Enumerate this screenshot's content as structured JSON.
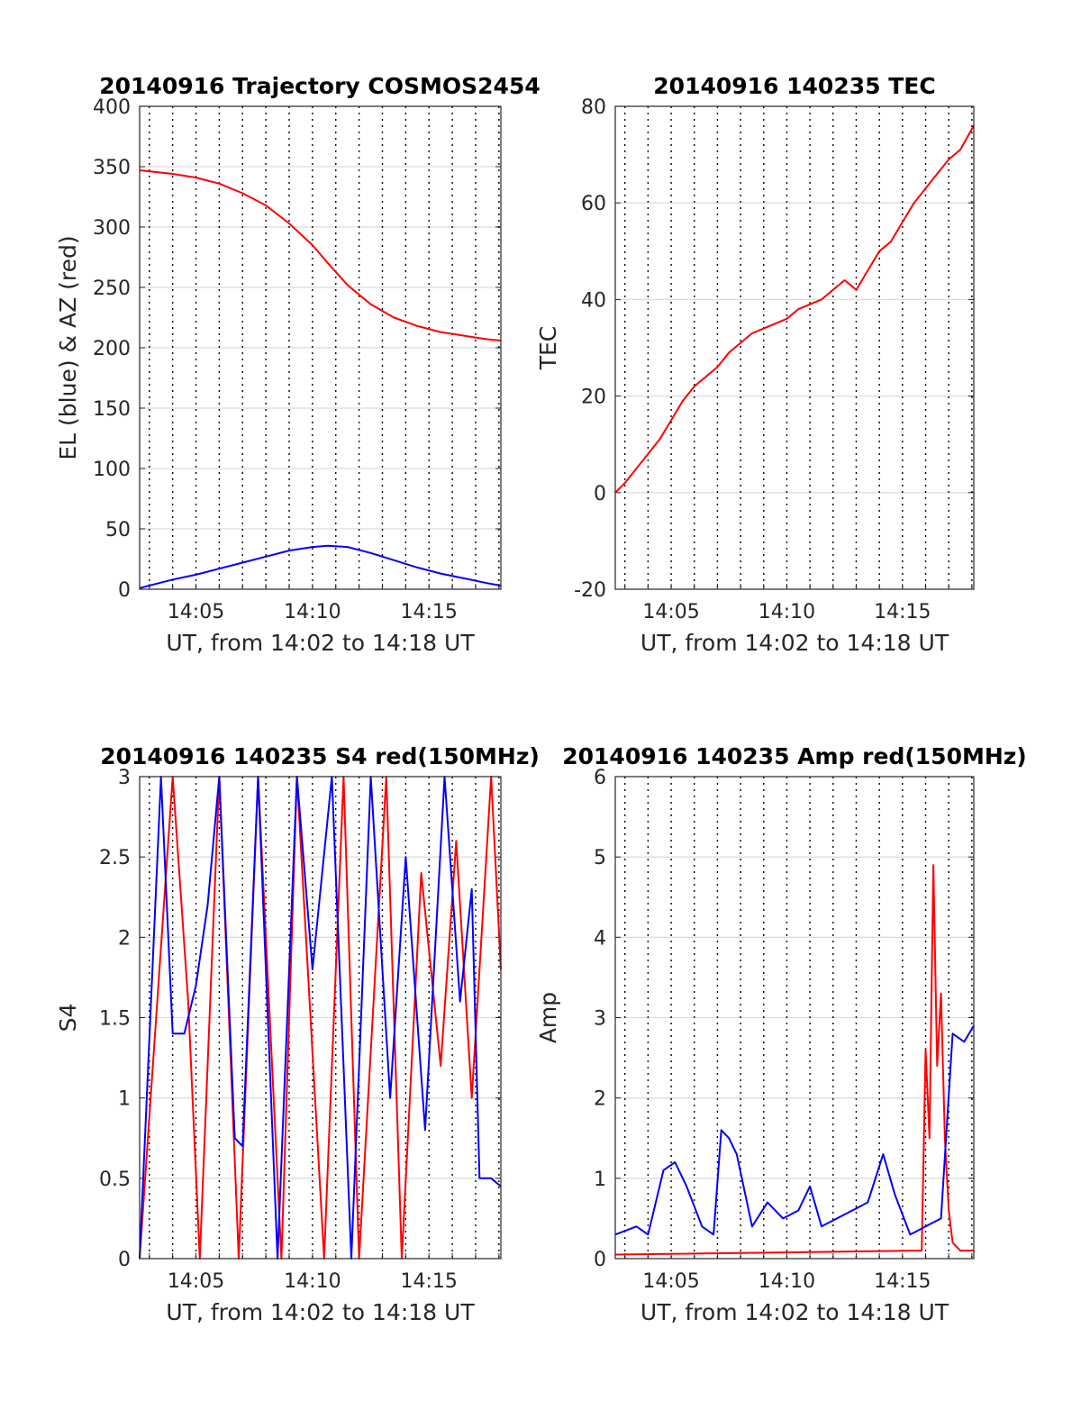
{
  "chart_data": [
    {
      "type": "line",
      "title": "20140916 Trajectory COSMOS2454",
      "xlabel": "UT, from 14:02 to 14:18 UT",
      "ylabel": "EL (blue) & AZ (red)",
      "xlim": [
        "14:02:35",
        "14:18:05"
      ],
      "ylim": [
        0,
        400
      ],
      "x_tick_labels": [
        "14:05",
        "14:10",
        "14:15"
      ],
      "y_tick_labels": [
        "0",
        "50",
        "100",
        "150",
        "200",
        "250",
        "300",
        "350",
        "400"
      ],
      "grid": "dotted vertical every minute, solid horizontal",
      "series": [
        {
          "color": "#ff0000",
          "x": [
            "14:02:35",
            "14:04:00",
            "14:05:00",
            "14:06:00",
            "14:07:00",
            "14:08:00",
            "14:09:00",
            "14:10:00",
            "14:10:40",
            "14:11:30",
            "14:12:30",
            "14:13:30",
            "14:14:30",
            "14:15:30",
            "14:16:30",
            "14:17:30",
            "14:18:05"
          ],
          "values": [
            347,
            344,
            341,
            336,
            328,
            318,
            303,
            285,
            270,
            252,
            236,
            225,
            218,
            213,
            210,
            207,
            206
          ]
        },
        {
          "color": "#0000ff",
          "x": [
            "14:02:35",
            "14:04:00",
            "14:05:00",
            "14:06:00",
            "14:07:00",
            "14:08:00",
            "14:09:00",
            "14:10:00",
            "14:10:40",
            "14:11:30",
            "14:12:30",
            "14:13:30",
            "14:14:30",
            "14:15:30",
            "14:16:30",
            "14:17:30",
            "14:18:05"
          ],
          "values": [
            1,
            8,
            12,
            17,
            22,
            27,
            32,
            35,
            36,
            35,
            30,
            24,
            18,
            13,
            9,
            5,
            3
          ]
        }
      ]
    },
    {
      "type": "line",
      "title": "20140916 140235 TEC",
      "xlabel": "UT, from 14:02 to 14:18 UT",
      "ylabel": "TEC",
      "xlim": [
        "14:02:35",
        "14:18:05"
      ],
      "ylim": [
        -20,
        80
      ],
      "x_tick_labels": [
        "14:05",
        "14:10",
        "14:15"
      ],
      "y_tick_labels": [
        "-20",
        "0",
        "20",
        "40",
        "60",
        "80"
      ],
      "grid": "dotted vertical every minute, solid horizontal",
      "series": [
        {
          "color": "#ff0000",
          "x": [
            "14:02:35",
            "14:03:00",
            "14:03:30",
            "14:04:00",
            "14:04:30",
            "14:05:00",
            "14:05:30",
            "14:06:00",
            "14:06:30",
            "14:07:00",
            "14:07:30",
            "14:08:00",
            "14:08:30",
            "14:09:00",
            "14:09:30",
            "14:10:00",
            "14:10:30",
            "14:11:00",
            "14:11:30",
            "14:12:00",
            "14:12:30",
            "14:13:00",
            "14:13:30",
            "14:14:00",
            "14:14:30",
            "14:15:00",
            "14:15:30",
            "14:16:00",
            "14:16:30",
            "14:17:00",
            "14:17:30",
            "14:18:05"
          ],
          "values": [
            0,
            2,
            5,
            8,
            11,
            15,
            19,
            22,
            24,
            26,
            29,
            31,
            33,
            34,
            35,
            36,
            38,
            39,
            40,
            42,
            44,
            42,
            46,
            50,
            52,
            56,
            60,
            63,
            66,
            69,
            71,
            76
          ]
        }
      ]
    },
    {
      "type": "line",
      "title": "20140916 140235 S4 red(150MHz)",
      "xlabel": "UT, from 14:02 to 14:18 UT",
      "ylabel": "S4",
      "xlim": [
        "14:02:35",
        "14:18:05"
      ],
      "ylim": [
        0,
        3
      ],
      "x_tick_labels": [
        "14:05",
        "14:10",
        "14:15"
      ],
      "y_tick_labels": [
        "0",
        "0.5",
        "1",
        "1.5",
        "2",
        "2.5",
        "3"
      ],
      "grid": "dotted vertical every minute, solid horizontal",
      "series": [
        {
          "color": "#ff0000",
          "x": [
            "14:02:35",
            "14:04:00",
            "14:04:40",
            "14:05:10",
            "14:06:00",
            "14:06:50",
            "14:07:40",
            "14:08:40",
            "14:09:20",
            "14:10:30",
            "14:11:20",
            "14:12:00",
            "14:13:10",
            "14:13:50",
            "14:14:40",
            "14:15:30",
            "14:16:10",
            "14:16:50",
            "14:17:40",
            "14:18:05"
          ],
          "values": [
            0,
            3.0,
            1.6,
            0,
            3.0,
            0,
            3.0,
            0,
            3.0,
            0,
            3.0,
            0,
            3.0,
            0,
            2.4,
            1.2,
            2.6,
            1.0,
            3.0,
            1.8
          ]
        },
        {
          "color": "#0000ff",
          "x": [
            "14:02:35",
            "14:03:30",
            "14:04:00",
            "14:04:30",
            "14:05:00",
            "14:05:30",
            "14:06:00",
            "14:06:40",
            "14:07:00",
            "14:07:40",
            "14:08:30",
            "14:09:20",
            "14:10:00",
            "14:10:50",
            "14:11:40",
            "14:12:30",
            "14:13:20",
            "14:14:00",
            "14:14:50",
            "14:15:40",
            "14:16:20",
            "14:16:50",
            "14:17:10",
            "14:17:40",
            "14:18:05"
          ],
          "values": [
            0,
            3.0,
            1.4,
            1.4,
            1.7,
            2.2,
            3.0,
            0.75,
            0.7,
            3.0,
            0,
            3.0,
            1.8,
            3.0,
            0,
            3.0,
            1.0,
            2.5,
            0.8,
            3.0,
            1.6,
            2.3,
            0.5,
            0.5,
            0.45
          ]
        }
      ]
    },
    {
      "type": "line",
      "title": "20140916 140235 Amp red(150MHz)",
      "xlabel": "UT, from 14:02 to 14:18 UT",
      "ylabel": "Amp",
      "xlim": [
        "14:02:35",
        "14:18:05"
      ],
      "ylim": [
        0,
        6
      ],
      "x_tick_labels": [
        "14:05",
        "14:10",
        "14:15"
      ],
      "y_tick_labels": [
        "0",
        "1",
        "2",
        "3",
        "4",
        "5",
        "6"
      ],
      "grid": "dotted vertical every minute, solid horizontal",
      "series": [
        {
          "color": "#ff0000",
          "x": [
            "14:02:35",
            "14:15:50",
            "14:16:00",
            "14:16:10",
            "14:16:20",
            "14:16:30",
            "14:16:40",
            "14:16:50",
            "14:17:00",
            "14:17:10",
            "14:17:30",
            "14:18:05"
          ],
          "values": [
            0.05,
            0.1,
            2.6,
            1.5,
            4.9,
            2.4,
            3.3,
            1.5,
            0.6,
            0.2,
            0.1,
            0.1
          ]
        },
        {
          "color": "#0000ff",
          "x": [
            "14:02:35",
            "14:03:30",
            "14:04:00",
            "14:04:40",
            "14:05:10",
            "14:05:40",
            "14:06:20",
            "14:06:50",
            "14:07:10",
            "14:07:30",
            "14:07:50",
            "14:08:30",
            "14:09:10",
            "14:09:50",
            "14:10:30",
            "14:11:00",
            "14:11:30",
            "14:12:10",
            "14:12:50",
            "14:13:30",
            "14:14:10",
            "14:14:40",
            "14:15:20",
            "14:16:00",
            "14:16:40",
            "14:17:10",
            "14:17:40",
            "14:18:05"
          ],
          "values": [
            0.3,
            0.4,
            0.3,
            1.1,
            1.2,
            0.9,
            0.4,
            0.3,
            1.6,
            1.5,
            1.3,
            0.4,
            0.7,
            0.5,
            0.6,
            0.9,
            0.4,
            0.5,
            0.6,
            0.7,
            1.3,
            0.8,
            0.3,
            0.4,
            0.5,
            2.8,
            2.7,
            2.9
          ]
        }
      ]
    }
  ]
}
